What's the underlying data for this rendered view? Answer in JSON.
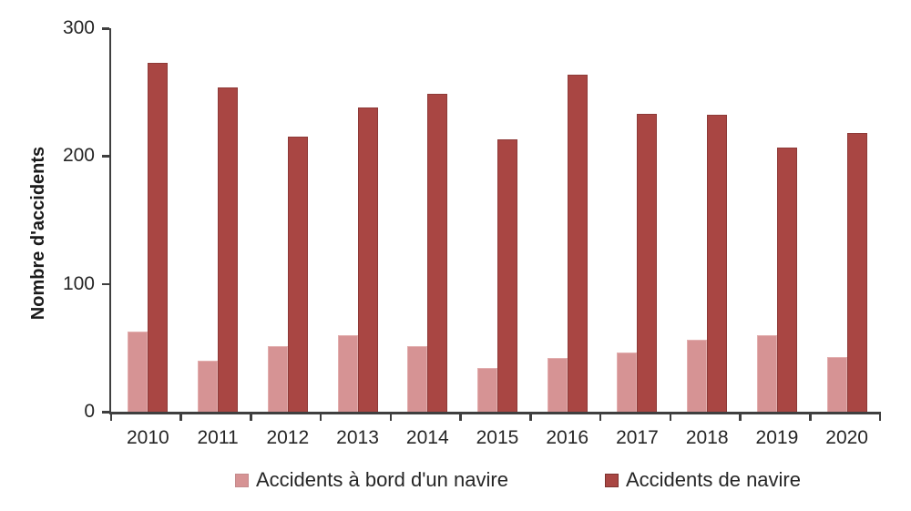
{
  "chart_data": {
    "type": "bar",
    "title": "",
    "xlabel": "",
    "ylabel": "Nombre d'accidents",
    "ylim": [
      0,
      300
    ],
    "yticks": [
      300,
      200,
      100,
      0
    ],
    "grid": false,
    "legend_position": "bottom",
    "categories": [
      "2010",
      "2011",
      "2012",
      "2013",
      "2014",
      "2015",
      "2016",
      "2017",
      "2018",
      "2019",
      "2020"
    ],
    "series": [
      {
        "name": "Accidents à bord d'un navire",
        "color": "#d69394",
        "border_color": "#e2aeae",
        "values": [
          63,
          40,
          51,
          60,
          51,
          34,
          42,
          46,
          56,
          60,
          43
        ]
      },
      {
        "name": "Accidents de navire",
        "color": "#a94643",
        "border_color": "#8e3a38",
        "values": [
          273,
          254,
          215,
          238,
          249,
          213,
          264,
          233,
          232,
          207,
          218
        ]
      }
    ]
  },
  "colors": {
    "axis": "#3f3f3f",
    "text": "#262626",
    "background": "#ffffff"
  }
}
